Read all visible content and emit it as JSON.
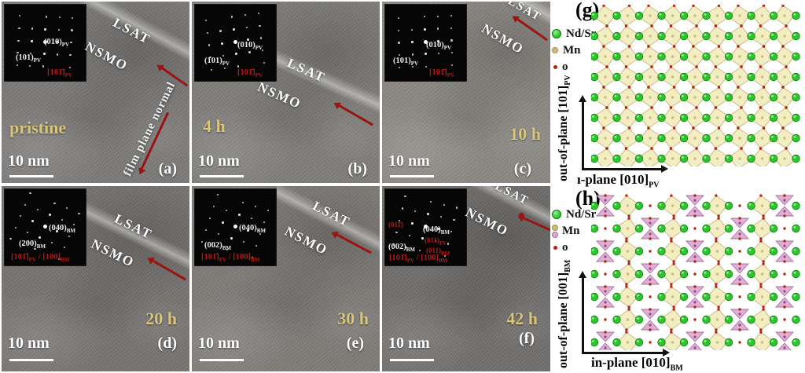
{
  "figure": {
    "panels": [
      {
        "letter": "(a)",
        "time": "pristine",
        "substrate": "LSAT",
        "film": "NSMO",
        "scale": "10 nm",
        "note": "film plane normal",
        "fft": {
          "spotA": "(010)",
          "spotA_sub": "PV",
          "spotB": "(101)",
          "spotB_sub": "PV",
          "zone1": "[101̄]",
          "zone1_sub": "PV"
        }
      },
      {
        "letter": "(b)",
        "time": "4 h",
        "substrate": "LSAT",
        "film": "NSMO",
        "scale": "10 nm",
        "fft": {
          "spotA": "(010)",
          "spotA_sub": "PV",
          "spotB": "(101)",
          "spotB_sub": "PV",
          "zone1": "[101̄]",
          "zone1_sub": "PV"
        }
      },
      {
        "letter": "(c)",
        "time": "10 h",
        "substrate": "LSAT",
        "film": "NSMO",
        "scale": "10 nm",
        "fft": {
          "spotA": "(010)",
          "spotA_sub": "PV",
          "spotB": "(101)",
          "spotB_sub": "PV",
          "zone1": "[101̄]",
          "zone1_sub": "PV"
        }
      },
      {
        "letter": "(d)",
        "time": "20 h",
        "substrate": "LSAT",
        "film": "NSMO",
        "scale": "10 nm",
        "fft": {
          "spotA": "(040)",
          "spotA_sub": "BM",
          "spotB": "(200)",
          "spotB_sub": "BM",
          "zone1": "[101̄]",
          "zone1_sub": "PV",
          "zone_sep": "/",
          "zone2": "[100]",
          "zone2_sub": "BM"
        }
      },
      {
        "letter": "(e)",
        "time": "30 h",
        "substrate": "LSAT",
        "film": "NSMO",
        "scale": "10 nm",
        "fft": {
          "spotA": "(040)",
          "spotA_sub": "BM",
          "spotB": "(002)",
          "spotB_sub": "BM",
          "zone1": "[101̄]",
          "zone1_sub": "PV",
          "zone_sep": "/",
          "zone2": "[100]",
          "zone2_sub": "BM"
        }
      },
      {
        "letter": "(f)",
        "time": "42 h",
        "substrate": "LSAT",
        "film": "NSMO",
        "scale": "10 nm",
        "fft": {
          "spotA": "(040)",
          "spotA_sub": "BM",
          "spotB": "(002)",
          "spotB_sub": "BM",
          "zone1": "[101̄]",
          "zone1_sub": "PV",
          "zone_sep": "/",
          "zone2": "[100]",
          "zone2_sub": "BM",
          "red_spots": [
            {
              "t": "(011)",
              "s": "PV"
            },
            {
              "t": "(011)",
              "s": "BM"
            },
            {
              "t": "(011̄)",
              "s": ""
            }
          ]
        }
      }
    ],
    "diagrams": {
      "g": {
        "letter": "(g)",
        "legend": [
          {
            "label": "Nd/Sr"
          },
          {
            "label": "Mn"
          },
          {
            "label": "o"
          }
        ],
        "axis_y": "out-of-plane [101]",
        "axis_y_sub": "PV",
        "axis_x": "ı-plane [010]",
        "axis_x_sub": "PV"
      },
      "h": {
        "letter": "(h)",
        "legend": [
          {
            "label": "Nd/Sr"
          },
          {
            "label": "Mn"
          },
          {
            "label": "o"
          }
        ],
        "axis_y": "out-of-plane [001]",
        "axis_y_sub": "BM",
        "axis_x": "in-plane [010]",
        "axis_x_sub": "BM"
      }
    },
    "colors": {
      "label_yellow": "#d9c67c",
      "arrow_red": "#9a1412",
      "zone_red": "#b01c16",
      "nd_sr_green": "#2dc52d",
      "oxygen_red": "#bb2211",
      "mn_khaki": "#cdbd72",
      "octahedron_fill": "#f1ebbd",
      "octahedron_edge": "#c4b87a",
      "tetrahedron_fill": "#dda7d2",
      "tetrahedron_edge": "#a9739d"
    }
  }
}
